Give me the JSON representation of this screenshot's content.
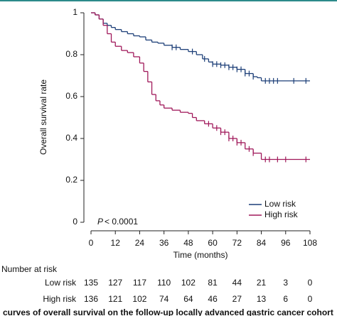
{
  "chart_data": {
    "type": "step",
    "xlabel": "Time (months)",
    "ylabel": "Overall survival rate",
    "xlim": [
      0,
      108
    ],
    "xticks": [
      0,
      12,
      24,
      36,
      48,
      60,
      72,
      84,
      96,
      108
    ],
    "ylim": [
      0,
      1
    ],
    "yticks": [
      0,
      0.2,
      0.4,
      0.6,
      0.8,
      1
    ],
    "legend": "lower right",
    "annotation": {
      "italic": "P",
      "text": "< 0.0001"
    },
    "series": [
      {
        "name": "Low risk",
        "color": "#1d3f78",
        "x": [
          0,
          2,
          4,
          6,
          8,
          10,
          12,
          15,
          18,
          21,
          24,
          27,
          30,
          33,
          36,
          40,
          44,
          48,
          52,
          55,
          58,
          60,
          64,
          68,
          72,
          76,
          80,
          82,
          84,
          108
        ],
        "values": [
          1,
          0.99,
          0.97,
          0.95,
          0.94,
          0.93,
          0.92,
          0.91,
          0.9,
          0.89,
          0.885,
          0.87,
          0.86,
          0.855,
          0.845,
          0.835,
          0.825,
          0.815,
          0.8,
          0.78,
          0.765,
          0.755,
          0.75,
          0.74,
          0.73,
          0.71,
          0.695,
          0.69,
          0.675,
          0.675
        ],
        "censored": [
          40,
          42,
          50,
          56,
          60,
          62,
          64,
          66,
          68,
          70,
          72,
          74,
          76,
          78,
          80,
          86,
          88,
          90,
          92,
          100,
          106
        ]
      },
      {
        "name": "High risk",
        "color": "#a0185a",
        "x": [
          0,
          2,
          4,
          6,
          8,
          10,
          12,
          15,
          18,
          21,
          24,
          26,
          28,
          30,
          32,
          34,
          36,
          40,
          44,
          48,
          50,
          52,
          56,
          60,
          64,
          68,
          72,
          76,
          80,
          84,
          108
        ],
        "values": [
          1,
          0.99,
          0.97,
          0.94,
          0.9,
          0.86,
          0.84,
          0.82,
          0.81,
          0.79,
          0.76,
          0.72,
          0.67,
          0.61,
          0.58,
          0.56,
          0.545,
          0.535,
          0.525,
          0.52,
          0.5,
          0.485,
          0.47,
          0.45,
          0.43,
          0.4,
          0.38,
          0.35,
          0.33,
          0.3,
          0.3
        ],
        "censored": [
          58,
          62,
          64,
          66,
          68,
          70,
          72,
          74,
          78,
          80,
          86,
          88,
          92,
          96,
          106
        ]
      }
    ],
    "risk_table": {
      "title": "Number at risk",
      "rows": [
        {
          "name": "Low risk",
          "values": [
            135,
            127,
            117,
            110,
            102,
            81,
            44,
            21,
            3,
            0
          ]
        },
        {
          "name": "High risk",
          "values": [
            136,
            121,
            102,
            74,
            64,
            46,
            27,
            13,
            6,
            0
          ]
        }
      ]
    }
  },
  "caption": "curves of overall survival on the follow-up locally advanced gastric cancer cohort"
}
